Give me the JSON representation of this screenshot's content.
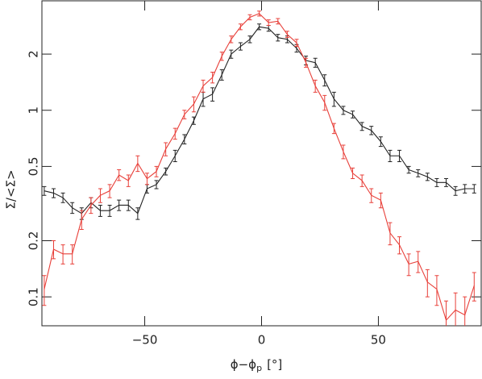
{
  "chart_data": {
    "type": "line",
    "xlabel": "ϕ−ϕ",
    "xlabel_sub": "p",
    "xlabel_unit": "[°]",
    "ylabel": "Σ/<Σ>",
    "xlim": [
      -94,
      94
    ],
    "ylim": [
      0.07,
      3.86
    ],
    "yscale": "log",
    "xticks": [
      {
        "value": -50,
        "label": "−50"
      },
      0,
      50
    ],
    "yticks": [
      0.1,
      0.2,
      0.5,
      1,
      2
    ],
    "x": [
      -93,
      -89,
      -85,
      -81,
      -77,
      -73,
      -69,
      -65,
      -61,
      -57,
      -53,
      -49,
      -45,
      -41,
      -37,
      -33,
      -29,
      -25,
      -21,
      -17,
      -13,
      -9,
      -5,
      -1,
      3,
      7,
      11,
      15,
      19,
      23,
      27,
      31,
      35,
      39,
      43,
      47,
      51,
      55,
      59,
      63,
      67,
      71,
      75,
      79,
      83,
      87,
      91
    ],
    "series": [
      {
        "color": "#222222",
        "values": [
          0.37,
          0.36,
          0.34,
          0.3,
          0.28,
          0.32,
          0.29,
          0.29,
          0.31,
          0.31,
          0.28,
          0.38,
          0.4,
          0.47,
          0.57,
          0.7,
          0.88,
          1.15,
          1.22,
          1.55,
          2.0,
          2.2,
          2.4,
          2.8,
          2.75,
          2.45,
          2.4,
          2.15,
          1.85,
          1.8,
          1.45,
          1.15,
          1.0,
          0.95,
          0.82,
          0.78,
          0.68,
          0.57,
          0.57,
          0.48,
          0.46,
          0.44,
          0.41,
          0.41,
          0.37,
          0.38,
          0.38
        ],
        "errors": [
          0.02,
          0.02,
          0.02,
          0.02,
          0.02,
          0.02,
          0.02,
          0.02,
          0.02,
          0.02,
          0.02,
          0.02,
          0.02,
          0.02,
          0.04,
          0.04,
          0.04,
          0.1,
          0.1,
          0.1,
          0.1,
          0.1,
          0.1,
          0.1,
          0.1,
          0.1,
          0.1,
          0.1,
          0.1,
          0.1,
          0.1,
          0.1,
          0.05,
          0.04,
          0.04,
          0.04,
          0.04,
          0.04,
          0.04,
          0.02,
          0.02,
          0.02,
          0.02,
          0.02,
          0.02,
          0.02,
          0.02
        ]
      },
      {
        "color": "#e8403a",
        "values": [
          0.11,
          0.18,
          0.17,
          0.17,
          0.26,
          0.31,
          0.35,
          0.37,
          0.45,
          0.42,
          0.52,
          0.43,
          0.47,
          0.62,
          0.75,
          0.95,
          1.08,
          1.35,
          1.5,
          1.95,
          2.4,
          2.8,
          3.15,
          3.3,
          2.95,
          3.0,
          2.55,
          2.3,
          1.8,
          1.35,
          1.1,
          0.8,
          0.6,
          0.46,
          0.42,
          0.35,
          0.33,
          0.22,
          0.19,
          0.15,
          0.155,
          0.12,
          0.11,
          0.075,
          0.085,
          0.08,
          0.115
        ],
        "errors": [
          0.02,
          0.02,
          0.02,
          0.02,
          0.03,
          0.03,
          0.03,
          0.03,
          0.03,
          0.03,
          0.05,
          0.03,
          0.03,
          0.05,
          0.05,
          0.05,
          0.1,
          0.1,
          0.1,
          0.1,
          0.1,
          0.1,
          0.1,
          0.1,
          0.1,
          0.1,
          0.1,
          0.1,
          0.1,
          0.1,
          0.1,
          0.05,
          0.05,
          0.03,
          0.03,
          0.03,
          0.03,
          0.03,
          0.02,
          0.02,
          0.02,
          0.02,
          0.02,
          0.02,
          0.02,
          0.02,
          0.02
        ]
      }
    ]
  }
}
